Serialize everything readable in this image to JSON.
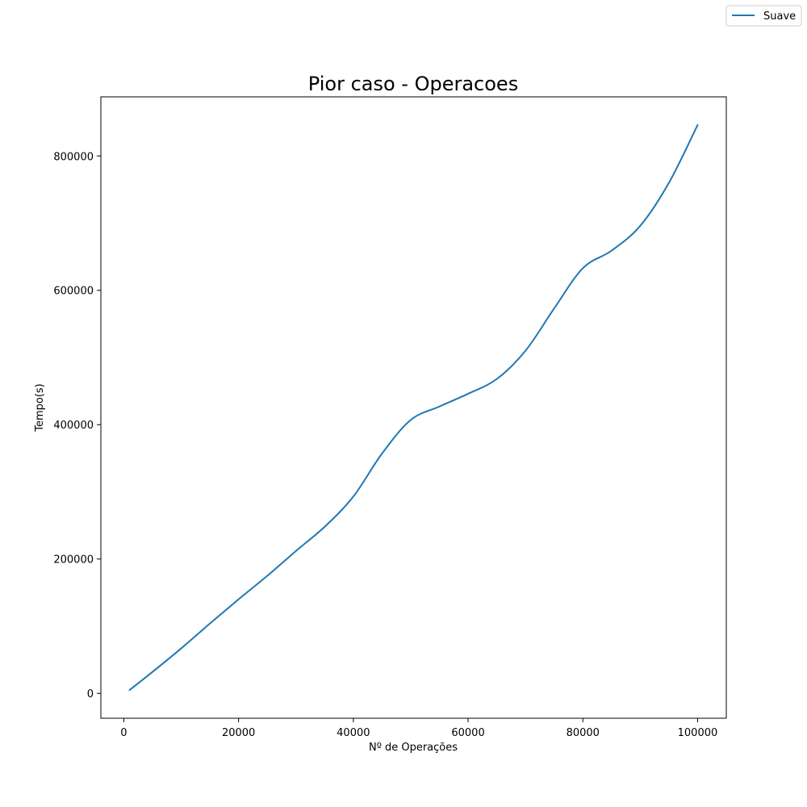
{
  "chart_data": {
    "type": "line",
    "title": "Pior caso - Operacoes",
    "xlabel": "Nº de Operações",
    "ylabel": "Tempo(s)",
    "xlim": [
      -4000,
      105000
    ],
    "ylim": [
      -37000,
      888000
    ],
    "xticks": [
      0,
      20000,
      40000,
      60000,
      80000,
      100000
    ],
    "yticks": [
      0,
      200000,
      400000,
      600000,
      800000
    ],
    "grid": false,
    "legend_position": "top-right",
    "series": [
      {
        "name": "Suave",
        "color": "#1f77b4",
        "x": [
          1000,
          5000,
          10000,
          15000,
          20000,
          25000,
          30000,
          35000,
          40000,
          45000,
          50000,
          55000,
          60000,
          65000,
          70000,
          75000,
          80000,
          85000,
          90000,
          95000,
          100000
        ],
        "y": [
          5000,
          32000,
          67000,
          104000,
          140000,
          175000,
          212000,
          248000,
          293000,
          357000,
          407000,
          427000,
          446000,
          468000,
          510000,
          573000,
          633000,
          659000,
          696000,
          760000,
          846000
        ]
      }
    ]
  }
}
